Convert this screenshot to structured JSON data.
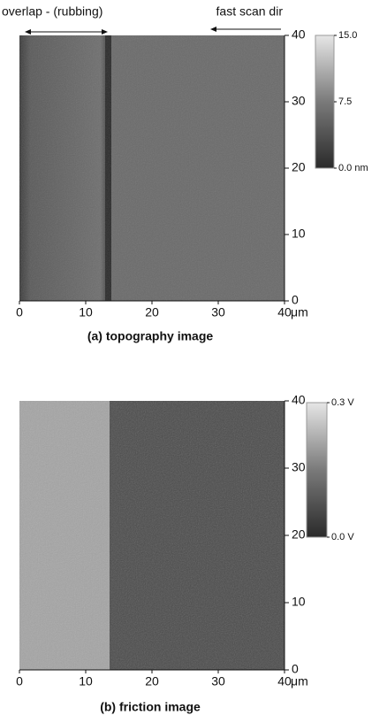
{
  "chart_data": [
    {
      "type": "image",
      "caption": "(a) topography image",
      "annotations": [
        "overlap - (rubbing)",
        "fast scan dir"
      ],
      "xlabel": "μm",
      "xlim": [
        0,
        40
      ],
      "xticks": [
        0,
        10,
        20,
        30,
        40
      ],
      "ylim": [
        0,
        40
      ],
      "yticks": [
        0,
        10,
        20,
        30,
        40
      ],
      "clim": [
        0,
        15
      ],
      "cticks": [
        {
          "value": 15,
          "label": "15.0"
        },
        {
          "value": 7.5,
          "label": "7.5"
        },
        {
          "value": 0,
          "label": "0.0 nm"
        }
      ]
    },
    {
      "type": "image",
      "caption": "(b) friction image",
      "xlabel": "μm",
      "xlim": [
        0,
        40
      ],
      "xticks": [
        0,
        10,
        20,
        30,
        40
      ],
      "ylim": [
        0,
        40
      ],
      "yticks": [
        0,
        10,
        20,
        30,
        40
      ],
      "clim": [
        0,
        0.3
      ],
      "cticks": [
        {
          "value": 0.3,
          "label": "0.3 V"
        },
        {
          "value": 0,
          "label": "0.0 V"
        }
      ]
    }
  ]
}
